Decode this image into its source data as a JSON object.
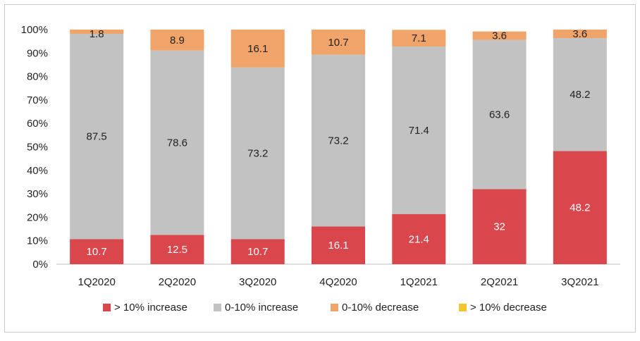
{
  "chart_data": {
    "type": "stacked-bar-percent",
    "categories": [
      "1Q2020",
      "2Q2020",
      "3Q2020",
      "4Q2020",
      "1Q2021",
      "2Q2021",
      "3Q2021"
    ],
    "series": [
      {
        "name": "> 10% increase",
        "color": "#d9464b",
        "label_color": "#ffffff",
        "values": [
          10.7,
          12.5,
          10.7,
          16.1,
          21.4,
          32,
          48.2
        ],
        "labels": [
          "10.7",
          "12.5",
          "10.7",
          "16.1",
          "21.4",
          "32",
          "48.2"
        ]
      },
      {
        "name": "0-10% increase",
        "color": "#c2c2c2",
        "label_color": "#222222",
        "values": [
          87.5,
          78.6,
          73.2,
          73.2,
          71.4,
          63.6,
          48.2
        ],
        "labels": [
          "87.5",
          "78.6",
          "73.2",
          "73.2",
          "71.4",
          "63.6",
          "48.2"
        ]
      },
      {
        "name": "0-10% decrease",
        "color": "#f0a46a",
        "label_color": "#222222",
        "values": [
          1.8,
          8.9,
          16.1,
          10.7,
          7.1,
          3.6,
          3.6
        ],
        "labels": [
          "1.8",
          "8.9",
          "16.1",
          "10.7",
          "7.1",
          "3.6",
          "3.6"
        ]
      },
      {
        "name": "> 10% decrease",
        "color": "#f5c531",
        "label_color": "#222222",
        "values": [
          0,
          0,
          0,
          0,
          0,
          0,
          0
        ],
        "labels": [
          "",
          "",
          "",
          "",
          "",
          "",
          ""
        ]
      }
    ],
    "y_ticks": [
      "0%",
      "10%",
      "20%",
      "30%",
      "40%",
      "50%",
      "60%",
      "70%",
      "80%",
      "90%",
      "100%"
    ],
    "ylim": [
      0,
      100
    ],
    "legend_position": "bottom"
  }
}
